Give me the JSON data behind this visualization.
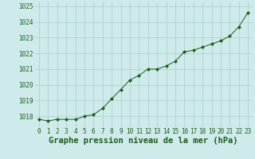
{
  "x": [
    0,
    1,
    2,
    3,
    4,
    5,
    6,
    7,
    8,
    9,
    10,
    11,
    12,
    13,
    14,
    15,
    16,
    17,
    18,
    19,
    20,
    21,
    22,
    23
  ],
  "y": [
    1017.8,
    1017.7,
    1017.8,
    1017.8,
    1017.8,
    1018.0,
    1018.1,
    1018.5,
    1019.1,
    1019.7,
    1020.3,
    1020.6,
    1021.0,
    1021.0,
    1021.2,
    1021.5,
    1022.1,
    1022.2,
    1022.4,
    1022.6,
    1022.8,
    1023.1,
    1023.7,
    1024.6
  ],
  "line_color": "#1a5c1a",
  "marker": "D",
  "marker_size": 2.2,
  "background_color": "#ceeaea",
  "grid_color": "#aacccc",
  "xlabel": "Graphe pression niveau de la mer (hPa)",
  "xlabel_fontsize": 7.5,
  "ylim": [
    1017.3,
    1025.3
  ],
  "yticks": [
    1018,
    1019,
    1020,
    1021,
    1022,
    1023,
    1024,
    1025
  ],
  "xticks": [
    0,
    1,
    2,
    3,
    4,
    5,
    6,
    7,
    8,
    9,
    10,
    11,
    12,
    13,
    14,
    15,
    16,
    17,
    18,
    19,
    20,
    21,
    22,
    23
  ],
  "tick_fontsize": 5.5,
  "tick_color": "#1a5c1a",
  "linewidth": 0.7
}
